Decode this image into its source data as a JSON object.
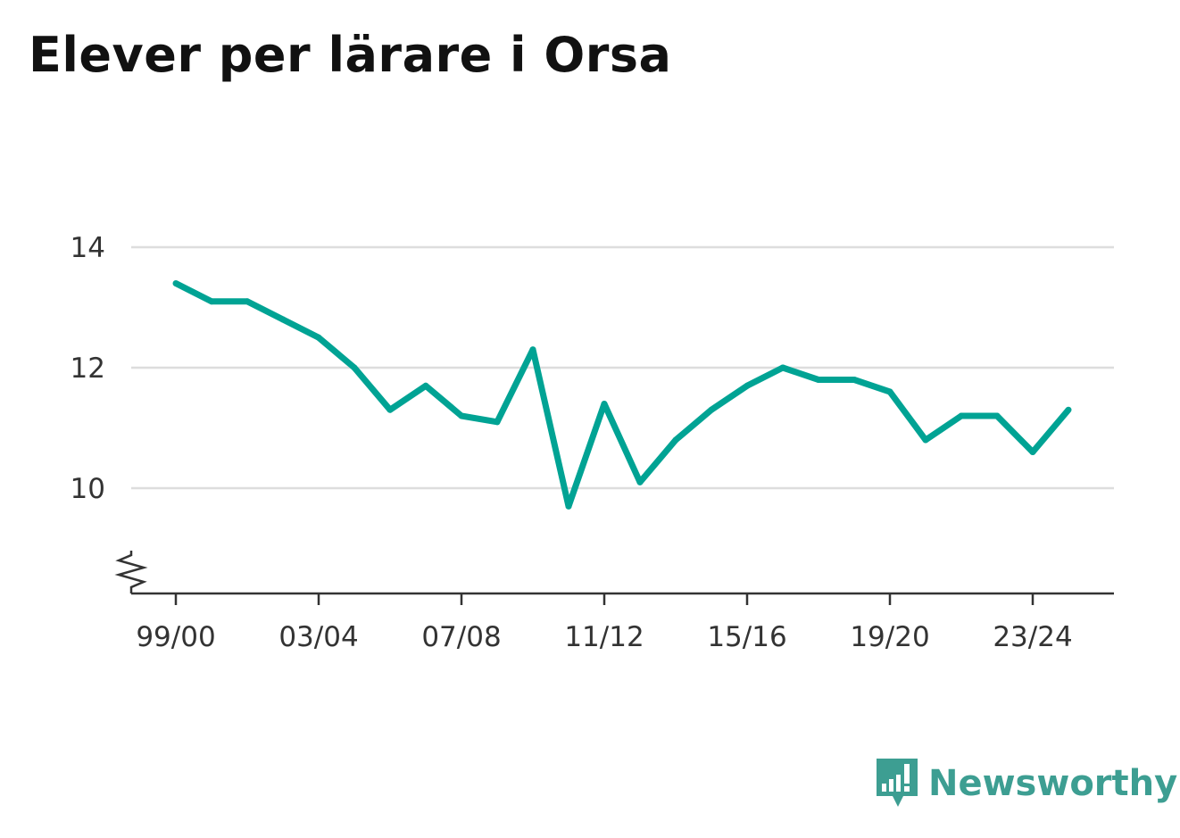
{
  "title": "Elever per lärare i Orsa",
  "brand": {
    "name": "Newsworthy",
    "color": "#3d9e92",
    "icon": "bar-chart-speech-bubble-icon"
  },
  "chart_data": {
    "type": "line",
    "title": "Elever per lärare i Orsa",
    "xlabel": "",
    "ylabel": "",
    "x": [
      "99/00",
      "00/01",
      "01/02",
      "02/03",
      "03/04",
      "04/05",
      "05/06",
      "06/07",
      "07/08",
      "08/09",
      "09/10",
      "10/11",
      "11/12",
      "12/13",
      "13/14",
      "14/15",
      "15/16",
      "16/17",
      "17/18",
      "18/19",
      "19/20",
      "20/21",
      "21/22",
      "22/23",
      "23/24",
      "24/25"
    ],
    "x_tick_labels": [
      "99/00",
      "03/04",
      "07/08",
      "11/12",
      "15/16",
      "19/20",
      "23/24"
    ],
    "y_ticks": [
      10,
      12,
      14
    ],
    "ylim": [
      8.3,
      14
    ],
    "grid": true,
    "axis_break": true,
    "series": [
      {
        "color": "#00a394",
        "values": [
          13.4,
          13.1,
          13.1,
          12.8,
          12.5,
          12.0,
          11.3,
          11.7,
          11.2,
          11.1,
          12.3,
          9.7,
          11.4,
          10.1,
          10.8,
          11.3,
          11.7,
          12.0,
          11.8,
          11.8,
          11.6,
          10.8,
          11.2,
          11.2,
          10.6,
          11.3
        ]
      }
    ]
  }
}
